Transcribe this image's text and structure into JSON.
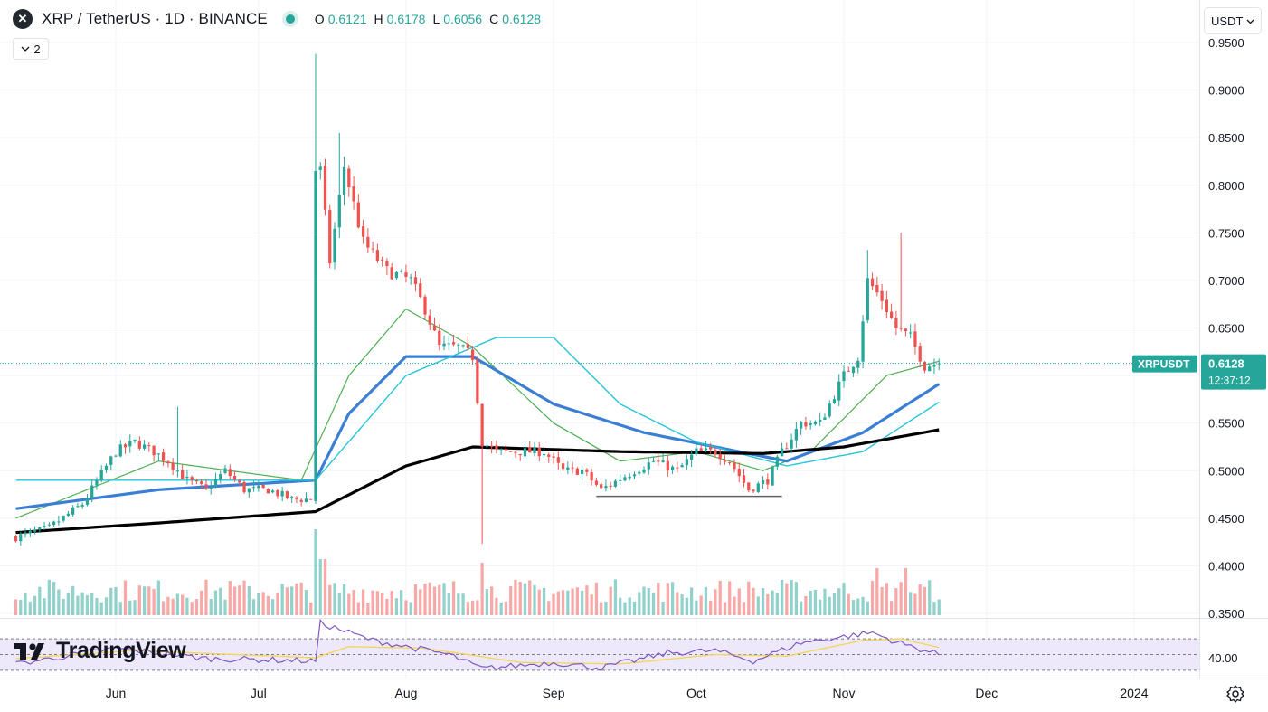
{
  "header": {
    "symbol_title": "XRP / TetherUS · 1D · BINANCE",
    "logo_glyph": "✕",
    "ohlc": [
      {
        "key": "O",
        "value": "0.6121"
      },
      {
        "key": "H",
        "value": "0.6178"
      },
      {
        "key": "L",
        "value": "0.6056"
      },
      {
        "key": "C",
        "value": "0.6128"
      }
    ],
    "collapse_count": "2",
    "quote_currency": "USDT"
  },
  "branding": {
    "name": "TradingView"
  },
  "colors": {
    "up": "#26a69a",
    "down": "#ef5350",
    "ma_thin_green": "#4caf50",
    "ma_blue": "#3b7fd4",
    "ma_cyan": "#26c6da",
    "ma_black": "#000000",
    "rsi": "#7e57c2",
    "rsi_ma": "#f5d64f",
    "rsi_band": "#ede8fa"
  },
  "chart_data": {
    "type": "candlestick",
    "title": "XRP / TetherUS · 1D · BINANCE",
    "ylim": [
      0.35,
      0.955
    ],
    "y_ticks": [
      "0.9500",
      "0.9000",
      "0.8500",
      "0.8000",
      "0.7500",
      "0.7000",
      "0.6500",
      "0.6000",
      "0.5500",
      "0.5000",
      "0.4500",
      "0.4000",
      "0.3500"
    ],
    "x_ticks": [
      "Jun",
      "Jul",
      "Aug",
      "Sep",
      "Oct",
      "Nov",
      "Dec",
      "2024"
    ],
    "last_price_label": {
      "symbol": "XRPUSDT",
      "price": "0.6128",
      "countdown": "12:37:12"
    },
    "horizontal_line": {
      "value": 0.473,
      "from": "Sep 10",
      "to": "Oct 19"
    },
    "price_anchors": [
      [
        "May 11",
        0.43
      ],
      [
        "May 18",
        0.44
      ],
      [
        "May 25",
        0.465
      ],
      [
        "Jun 1",
        0.52
      ],
      [
        "Jun 5",
        0.53
      ],
      [
        "Jun 9",
        0.52
      ],
      [
        "Jun 12",
        0.51
      ],
      [
        "Jun 16",
        0.49
      ],
      [
        "Jun 20",
        0.48
      ],
      [
        "Jun 24",
        0.5
      ],
      [
        "Jun 28",
        0.48
      ],
      [
        "Jul 3",
        0.48
      ],
      [
        "Jul 8",
        0.47
      ],
      [
        "Jul 13",
        0.47
      ],
      [
        "Jul 14",
        0.815
      ],
      [
        "Jul 16",
        0.72
      ],
      [
        "Jul 19",
        0.82
      ],
      [
        "Jul 23",
        0.74
      ],
      [
        "Jul 28",
        0.71
      ],
      [
        "Aug 2",
        0.7
      ],
      [
        "Aug 5",
        0.67
      ],
      [
        "Aug 8",
        0.63
      ],
      [
        "Aug 12",
        0.63
      ],
      [
        "Aug 15",
        0.62
      ],
      [
        "Aug 17",
        0.53
      ],
      [
        "Aug 20",
        0.52
      ],
      [
        "Aug 25",
        0.52
      ],
      [
        "Aug 30",
        0.52
      ],
      [
        "Sep 3",
        0.5
      ],
      [
        "Sep 7",
        0.5
      ],
      [
        "Sep 11",
        0.48
      ],
      [
        "Sep 18",
        0.5
      ],
      [
        "Sep 22",
        0.51
      ],
      [
        "Sep 27",
        0.5
      ],
      [
        "Oct 1",
        0.52
      ],
      [
        "Oct 5",
        0.52
      ],
      [
        "Oct 8",
        0.51
      ],
      [
        "Oct 12",
        0.48
      ],
      [
        "Oct 16",
        0.49
      ],
      [
        "Oct 19",
        0.52
      ],
      [
        "Oct 23",
        0.55
      ],
      [
        "Oct 27",
        0.55
      ],
      [
        "Nov 1",
        0.6
      ],
      [
        "Nov 4",
        0.62
      ],
      [
        "Nov 6",
        0.7
      ],
      [
        "Nov 9",
        0.68
      ],
      [
        "Nov 12",
        0.65
      ],
      [
        "Nov 15",
        0.64
      ],
      [
        "Nov 18",
        0.61
      ],
      [
        "Nov 21",
        0.6128
      ]
    ],
    "series": [
      {
        "name": "Price",
        "type": "candles"
      },
      {
        "type": "moving average",
        "values": [
          [
            "May 11",
            0.45
          ],
          [
            "Jun 10",
            0.51
          ],
          [
            "Jul 10",
            0.49
          ],
          [
            "Jul 20",
            0.6
          ],
          [
            "Aug 1",
            0.67
          ],
          [
            "Aug 15",
            0.63
          ],
          [
            "Sep 1",
            0.55
          ],
          [
            "Sep 15",
            0.51
          ],
          [
            "Oct 1",
            0.52
          ],
          [
            "Oct 15",
            0.5
          ],
          [
            "Oct 25",
            0.52
          ],
          [
            "Nov 10",
            0.6
          ],
          [
            "Nov 21",
            0.615
          ]
        ]
      },
      {
        "type": "moving average",
        "values": [
          [
            "May 11",
            0.46
          ],
          [
            "Jun 10",
            0.48
          ],
          [
            "Jul 13",
            0.49
          ],
          [
            "Jul 20",
            0.56
          ],
          [
            "Aug 1",
            0.62
          ],
          [
            "Aug 15",
            0.62
          ],
          [
            "Sep 1",
            0.57
          ],
          [
            "Sep 20",
            0.54
          ],
          [
            "Oct 10",
            0.52
          ],
          [
            "Oct 20",
            0.51
          ],
          [
            "Nov 5",
            0.54
          ],
          [
            "Nov 21",
            0.591
          ]
        ]
      },
      {
        "type": "moving average",
        "values": [
          [
            "May 11",
            0.49
          ],
          [
            "Jun 10",
            0.49
          ],
          [
            "Jul 13",
            0.49
          ],
          [
            "Aug 1",
            0.6
          ],
          [
            "Aug 20",
            0.64
          ],
          [
            "Sep 1",
            0.64
          ],
          [
            "Sep 15",
            0.57
          ],
          [
            "Oct 1",
            0.53
          ],
          [
            "Oct 20",
            0.505
          ],
          [
            "Nov 5",
            0.52
          ],
          [
            "Nov 21",
            0.572
          ]
        ]
      },
      {
        "type": "moving average",
        "values": [
          [
            "May 11",
            0.435
          ],
          [
            "Jun 10",
            0.445
          ],
          [
            "Jul 13",
            0.457
          ],
          [
            "Aug 1",
            0.505
          ],
          [
            "Aug 15",
            0.525
          ],
          [
            "Sep 15",
            0.52
          ],
          [
            "Oct 15",
            0.518
          ],
          [
            "Nov 1",
            0.525
          ],
          [
            "Nov 21",
            0.543
          ]
        ]
      }
    ],
    "rsi_panel": {
      "y_tick": "40.00",
      "bands": [
        70,
        30
      ],
      "rsi": [
        [
          "May 11",
          38
        ],
        [
          "Jun 1",
          58
        ],
        [
          "Jun 20",
          45
        ],
        [
          "Jul 13",
          42
        ],
        [
          "Jul 14",
          90
        ],
        [
          "Jul 25",
          68
        ],
        [
          "Aug 10",
          50
        ],
        [
          "Aug 17",
          32
        ],
        [
          "Sep 1",
          40
        ],
        [
          "Sep 11",
          33
        ],
        [
          "Sep 25",
          52
        ],
        [
          "Oct 5",
          55
        ],
        [
          "Oct 13",
          42
        ],
        [
          "Oct 23",
          65
        ],
        [
          "Nov 7",
          78
        ],
        [
          "Nov 12",
          66
        ],
        [
          "Nov 21",
          50
        ]
      ],
      "rsi_ma": [
        [
          "May 11",
          45
        ],
        [
          "Jun 5",
          55
        ],
        [
          "Jul 13",
          46
        ],
        [
          "Jul 20",
          60
        ],
        [
          "Aug 5",
          58
        ],
        [
          "Aug 25",
          40
        ],
        [
          "Sep 15",
          38
        ],
        [
          "Oct 5",
          50
        ],
        [
          "Oct 20",
          48
        ],
        [
          "Nov 5",
          68
        ],
        [
          "Nov 13",
          70
        ],
        [
          "Nov 21",
          59
        ]
      ]
    }
  }
}
